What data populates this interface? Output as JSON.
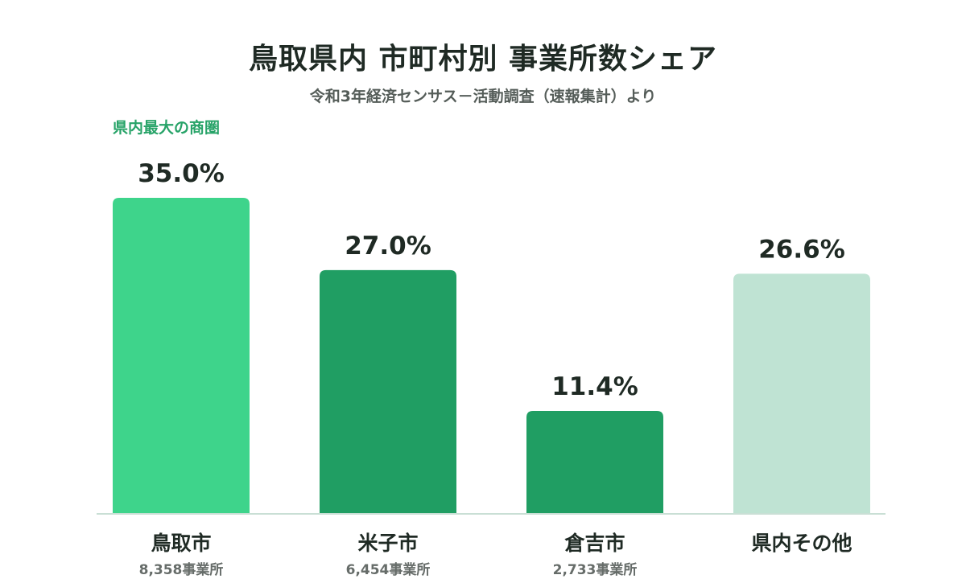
{
  "chart_data": {
    "type": "bar",
    "title": "鳥取県内 市町村別 事業所数シェア",
    "subtitle": "令和3年経済センサス－活動調査（速報集計）より",
    "xlabel": "",
    "ylabel": "",
    "ylim": [
      0,
      35
    ],
    "grid": false,
    "legend": "none",
    "unit": "%",
    "categories": [
      "鳥取市",
      "米子市",
      "倉吉市",
      "県内その他"
    ],
    "values": [
      35.0,
      27.0,
      11.4,
      26.6
    ],
    "value_labels": [
      "35.0%",
      "27.0%",
      "11.4%",
      "26.6%"
    ],
    "sublabels": [
      "8,358事業所",
      "6,454事業所",
      "2,733事業所",
      ""
    ],
    "colors": [
      "#3ed48b",
      "#209e63",
      "#209e63",
      "#bfe3d3"
    ],
    "annotation": {
      "text": "県内最大の商圏",
      "category_index": 0,
      "color": "#27a368"
    },
    "axis_color": "#c9dfd5",
    "text_color": "#1f2a24"
  }
}
